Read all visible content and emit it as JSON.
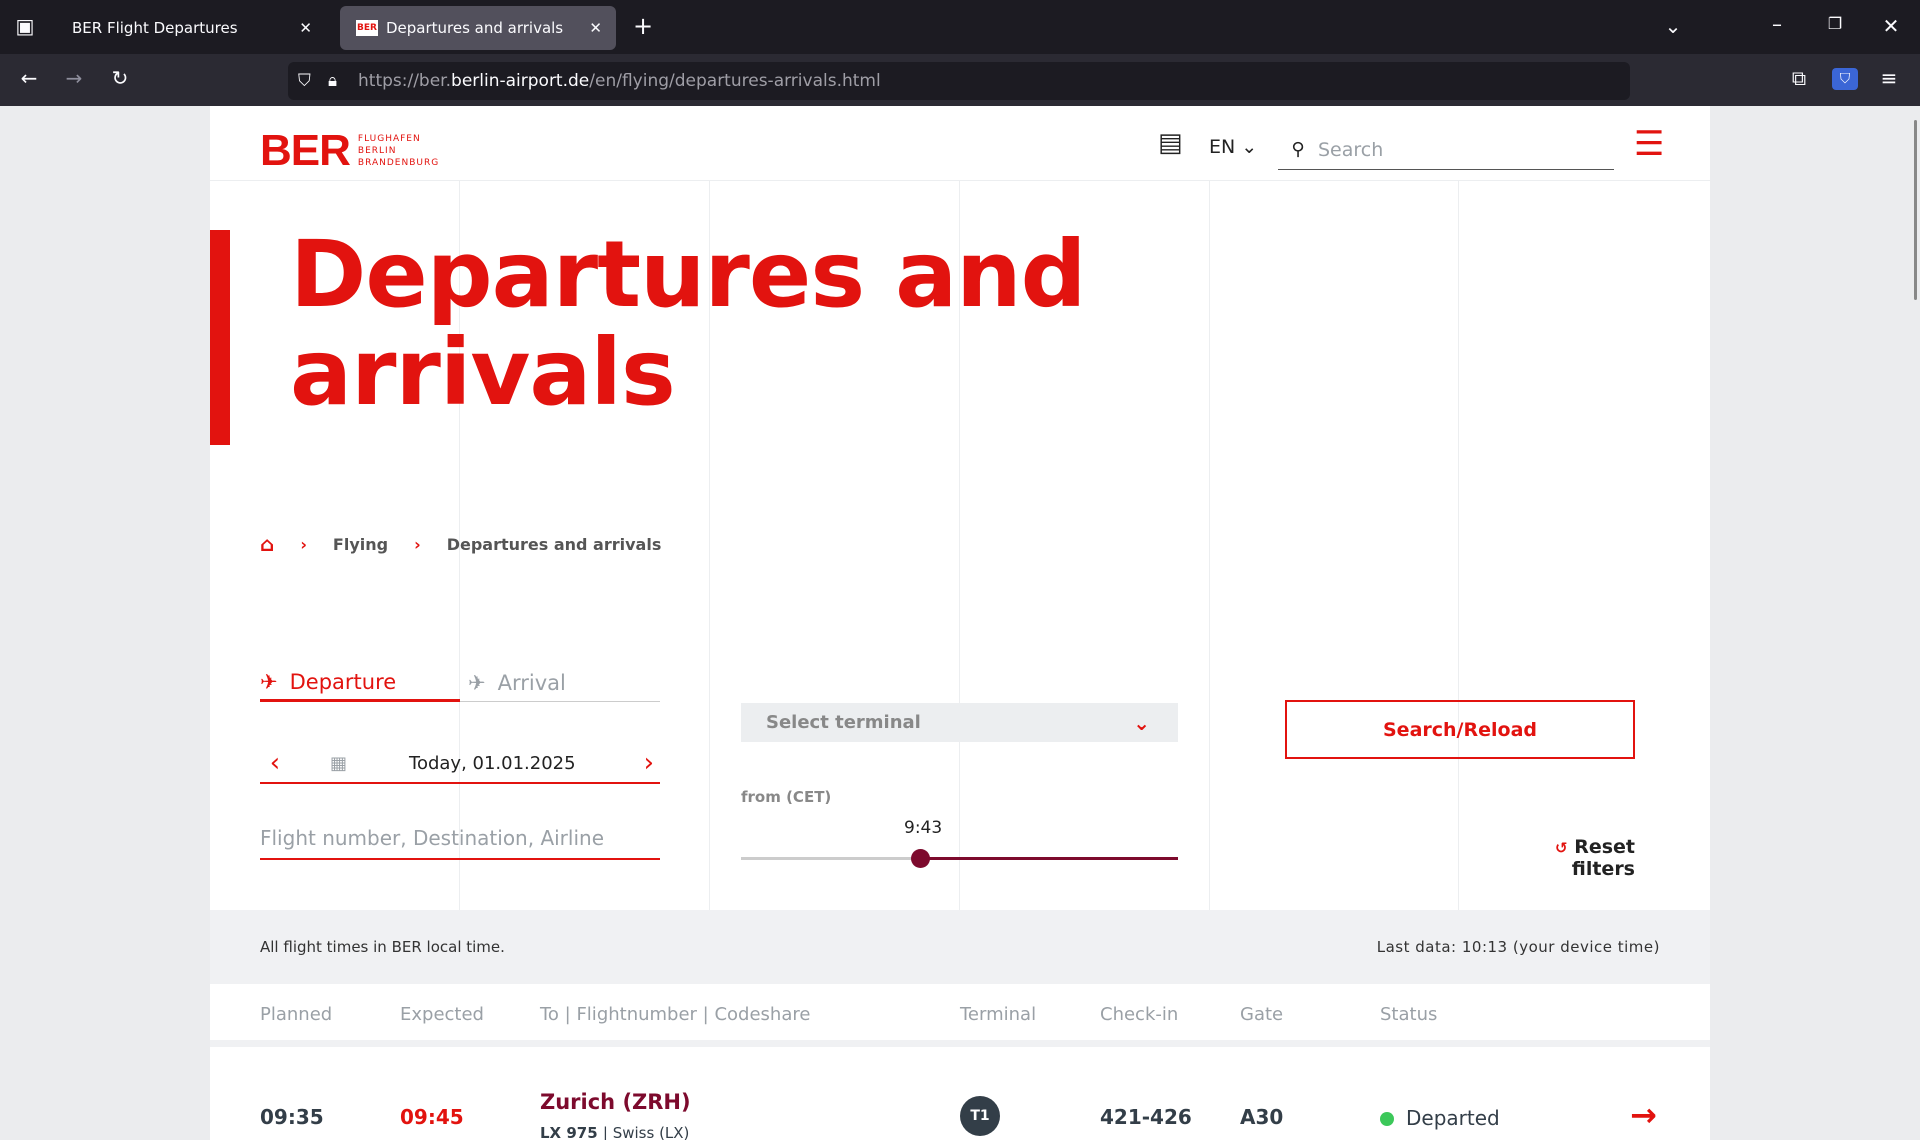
{
  "browser": {
    "tabs": [
      {
        "label": "BER Flight Departures"
      },
      {
        "label": "Departures and arrivals",
        "favicon": "BER"
      }
    ],
    "url_prefix": "https://ber.",
    "url_domain": "berlin-airport.de",
    "url_path": "/en/flying/departures-arrivals.html"
  },
  "header": {
    "logo_text": "BER",
    "logo_sub": [
      "FLUGHAFEN",
      "BERLIN",
      "BRANDENBURG"
    ],
    "language": "EN",
    "search_placeholder": "Search"
  },
  "page_title_1": "Departures and",
  "page_title_2": "arrivals",
  "breadcrumb": [
    {
      "label": "Flying"
    },
    {
      "label": "Departures and arrivals"
    }
  ],
  "filters": {
    "tab_departure": "Departure",
    "tab_arrival": "Arrival",
    "date": "Today, 01.01.2025",
    "flight_placeholder": "Flight number, Destination, Airline",
    "terminal_placeholder": "Select terminal",
    "from_label": "from (CET)",
    "time_value": "9:43",
    "time_slider_fraction": 0.41,
    "search_button": "Search/Reload",
    "reset_button": "Reset filters"
  },
  "info": {
    "local_time_note": "All flight times in BER local time.",
    "last_data": "Last data: 10:13 (your device time)"
  },
  "table": {
    "headers": [
      "Planned",
      "Expected",
      "To | Flightnumber | Codeshare",
      "Terminal",
      "Check-in",
      "Gate",
      "Status"
    ],
    "rows": [
      {
        "planned": "09:35",
        "expected": "09:45",
        "destination": "Zurich (ZRH)",
        "flight": "LX 975",
        "codeshare": "| Swiss (LX)",
        "terminal": "T1",
        "checkin": "421-426",
        "gate": "A30",
        "status": "Departed",
        "status_color": "#3cc85a"
      }
    ]
  },
  "colors": {
    "accent": "#e2130f",
    "destination": "#7d0a2d",
    "terminal_badge": "#333e48"
  }
}
